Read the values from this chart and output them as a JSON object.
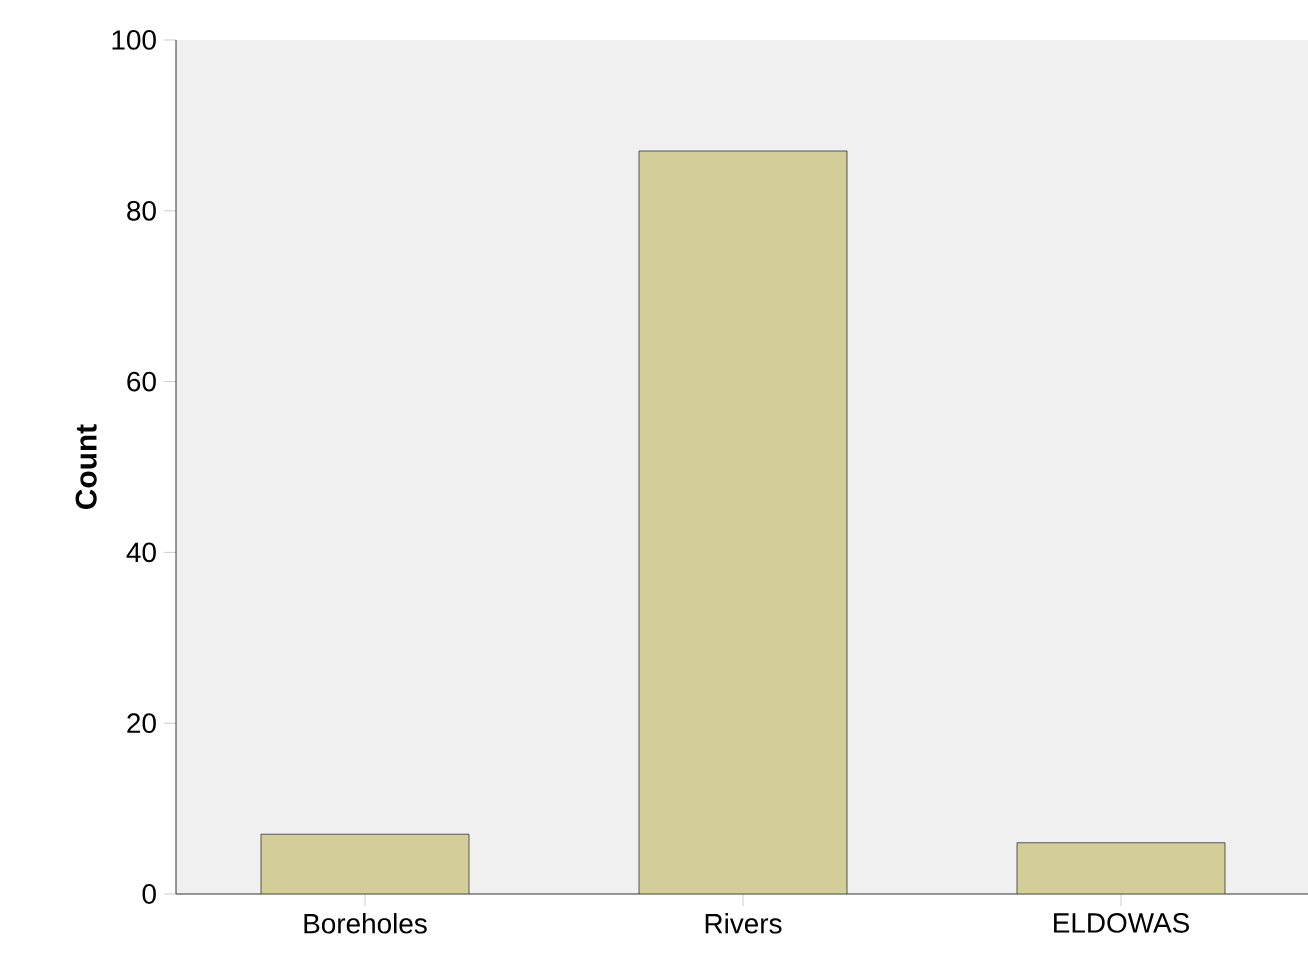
{
  "chart_data": {
    "type": "bar",
    "ylabel": "Count",
    "categories": [
      "Boreholes",
      "Rivers",
      "ELDOWAS"
    ],
    "values": [
      7,
      87,
      6
    ],
    "color": "#d3ce97",
    "ylim": [
      0,
      100
    ],
    "yticks": [
      0,
      20,
      40,
      60,
      80,
      100
    ],
    "grid": false
  }
}
